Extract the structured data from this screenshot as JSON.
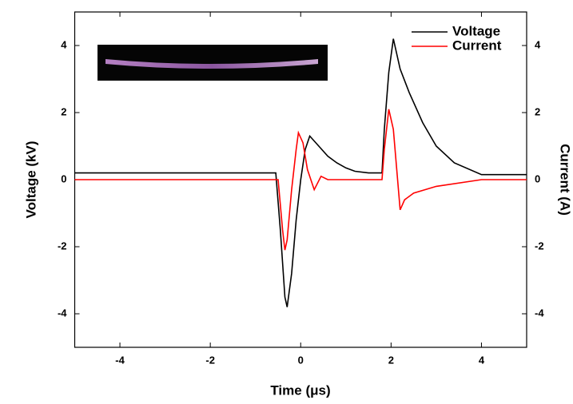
{
  "chart_data": {
    "type": "line",
    "x_label": "Time (μs)",
    "y_label": "Voltage (kV)",
    "y2_label": "Current (A)",
    "xlim": [
      -5,
      5
    ],
    "xticks": [
      -4,
      -2,
      0,
      2,
      4
    ],
    "ylim": [
      -5,
      5
    ],
    "yticks": [
      -4,
      -2,
      0,
      2,
      4
    ],
    "y2lim": [
      -5,
      5
    ],
    "y2ticks": [
      -4,
      -2,
      0,
      2,
      4
    ],
    "legend": "upper right",
    "series": [
      {
        "name": "Voltage",
        "color": "#000000",
        "x": [
          -5,
          -0.55,
          -0.45,
          -0.35,
          -0.3,
          -0.2,
          -0.1,
          0,
          0.1,
          0.2,
          0.4,
          0.6,
          0.8,
          1.0,
          1.2,
          1.5,
          1.8,
          1.85,
          1.95,
          2.05,
          2.2,
          2.4,
          2.7,
          3.0,
          3.4,
          4,
          5
        ],
        "values": [
          0.2,
          0.2,
          -1.5,
          -3.5,
          -3.8,
          -2.8,
          -1.2,
          0,
          0.9,
          1.3,
          1.0,
          0.7,
          0.5,
          0.35,
          0.25,
          0.2,
          0.2,
          1.5,
          3.2,
          4.2,
          3.3,
          2.6,
          1.7,
          1.0,
          0.5,
          0.15,
          0.15
        ]
      },
      {
        "name": "Current",
        "color": "#ff0000",
        "axis": "y2",
        "x": [
          -5,
          -0.5,
          -0.4,
          -0.35,
          -0.3,
          -0.2,
          -0.1,
          -0.05,
          0.05,
          0.15,
          0.3,
          0.45,
          0.6,
          1.0,
          1.8,
          1.85,
          1.95,
          2.05,
          2.2,
          2.3,
          2.5,
          3,
          4,
          5
        ],
        "values": [
          0,
          0,
          -1.5,
          -2.1,
          -1.8,
          -0.3,
          0.9,
          1.4,
          1.1,
          0.3,
          -0.3,
          0.1,
          0,
          0,
          0,
          0.9,
          2.1,
          1.5,
          -0.9,
          -0.6,
          -0.4,
          -0.2,
          0,
          0
        ]
      }
    ]
  }
}
